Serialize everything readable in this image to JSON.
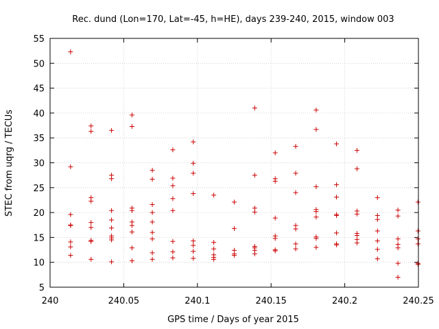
{
  "chart_data": {
    "type": "scatter",
    "title": "Rec. dund (Lon=170, Lat=-45, h=HE), days 239-240, 2015, window 003",
    "xlabel": "GPS time / Days of year 2015",
    "ylabel": "STEC from uqrg / TECUs",
    "xlim": [
      240,
      240.25
    ],
    "ylim": [
      5,
      55
    ],
    "xticks": [
      240,
      240.05,
      240.1,
      240.15,
      240.2,
      240.25
    ],
    "xtick_labels": [
      "240",
      "240.05",
      "240.1",
      "240.15",
      "240.2",
      "240.25"
    ],
    "yticks": [
      5,
      10,
      15,
      20,
      25,
      30,
      35,
      40,
      45,
      50,
      55
    ],
    "ytick_labels": [
      "5",
      "10",
      "15",
      "20",
      "25",
      "30",
      "35",
      "40",
      "45",
      "50",
      "55"
    ],
    "grid": true,
    "marker": "+",
    "color": "#cc0000",
    "series": [
      {
        "name": "STEC",
        "points": [
          [
            240.0139,
            52.3
          ],
          [
            240.0139,
            29.2
          ],
          [
            240.0139,
            19.6
          ],
          [
            240.0139,
            17.5
          ],
          [
            240.0139,
            17.4
          ],
          [
            240.0139,
            14.1
          ],
          [
            240.0139,
            13.1
          ],
          [
            240.0139,
            11.4
          ],
          [
            240.0278,
            37.4
          ],
          [
            240.0278,
            36.3
          ],
          [
            240.0278,
            23.0
          ],
          [
            240.0278,
            22.3
          ],
          [
            240.0278,
            18.0
          ],
          [
            240.0278,
            17.0
          ],
          [
            240.0278,
            14.4
          ],
          [
            240.0278,
            14.2
          ],
          [
            240.0278,
            10.6
          ],
          [
            240.0417,
            36.5
          ],
          [
            240.0417,
            27.5
          ],
          [
            240.0417,
            26.8
          ],
          [
            240.0417,
            20.4
          ],
          [
            240.0417,
            18.5
          ],
          [
            240.0417,
            16.9
          ],
          [
            240.0417,
            15.3
          ],
          [
            240.0417,
            14.9
          ],
          [
            240.0417,
            14.5
          ],
          [
            240.0417,
            10.1
          ],
          [
            240.0556,
            39.6
          ],
          [
            240.0556,
            37.3
          ],
          [
            240.0556,
            20.9
          ],
          [
            240.0556,
            20.4
          ],
          [
            240.0556,
            18.1
          ],
          [
            240.0556,
            17.4
          ],
          [
            240.0556,
            16.1
          ],
          [
            240.0556,
            12.9
          ],
          [
            240.0556,
            10.3
          ],
          [
            240.0694,
            28.5
          ],
          [
            240.0694,
            26.7
          ],
          [
            240.0694,
            21.6
          ],
          [
            240.0694,
            20.0
          ],
          [
            240.0694,
            18.1
          ],
          [
            240.0694,
            16.0
          ],
          [
            240.0694,
            14.7
          ],
          [
            240.0694,
            11.9
          ],
          [
            240.0694,
            10.6
          ],
          [
            240.0833,
            32.6
          ],
          [
            240.0833,
            26.9
          ],
          [
            240.0833,
            25.4
          ],
          [
            240.0833,
            22.8
          ],
          [
            240.0833,
            20.4
          ],
          [
            240.0833,
            14.2
          ],
          [
            240.0833,
            12.1
          ],
          [
            240.0833,
            10.9
          ],
          [
            240.0972,
            34.2
          ],
          [
            240.0972,
            29.9
          ],
          [
            240.0972,
            27.9
          ],
          [
            240.0972,
            23.8
          ],
          [
            240.0972,
            14.3
          ],
          [
            240.0972,
            13.4
          ],
          [
            240.0972,
            12.2
          ],
          [
            240.0972,
            10.8
          ],
          [
            240.1111,
            23.5
          ],
          [
            240.1111,
            14.0
          ],
          [
            240.1111,
            12.7
          ],
          [
            240.1111,
            11.5
          ],
          [
            240.1111,
            11.0
          ],
          [
            240.1111,
            10.6
          ],
          [
            240.125,
            22.1
          ],
          [
            240.125,
            16.8
          ],
          [
            240.125,
            12.4
          ],
          [
            240.125,
            11.7
          ],
          [
            240.125,
            11.4
          ],
          [
            240.1389,
            41.0
          ],
          [
            240.1389,
            27.5
          ],
          [
            240.1389,
            20.9
          ],
          [
            240.1389,
            20.1
          ],
          [
            240.1389,
            13.2
          ],
          [
            240.1389,
            12.9
          ],
          [
            240.1389,
            12.4
          ],
          [
            240.1389,
            11.7
          ],
          [
            240.1528,
            32.0
          ],
          [
            240.1528,
            26.8
          ],
          [
            240.1528,
            26.3
          ],
          [
            240.1528,
            18.9
          ],
          [
            240.1528,
            15.3
          ],
          [
            240.1528,
            14.8
          ],
          [
            240.1528,
            12.5
          ],
          [
            240.1528,
            12.3
          ],
          [
            240.1667,
            33.3
          ],
          [
            240.1667,
            27.9
          ],
          [
            240.1667,
            24.0
          ],
          [
            240.1667,
            17.4
          ],
          [
            240.1667,
            16.7
          ],
          [
            240.1667,
            13.7
          ],
          [
            240.1667,
            12.7
          ],
          [
            240.1806,
            40.6
          ],
          [
            240.1806,
            36.7
          ],
          [
            240.1806,
            25.2
          ],
          [
            240.1806,
            20.6
          ],
          [
            240.1806,
            20.2
          ],
          [
            240.1806,
            19.1
          ],
          [
            240.1806,
            15.1
          ],
          [
            240.1806,
            14.8
          ],
          [
            240.1806,
            13.0
          ],
          [
            240.1944,
            33.8
          ],
          [
            240.1944,
            25.6
          ],
          [
            240.1944,
            23.1
          ],
          [
            240.1944,
            19.6
          ],
          [
            240.1944,
            19.4
          ],
          [
            240.1944,
            15.9
          ],
          [
            240.1944,
            13.7
          ],
          [
            240.1944,
            13.5
          ],
          [
            240.2083,
            32.5
          ],
          [
            240.2083,
            28.8
          ],
          [
            240.2083,
            20.3
          ],
          [
            240.2083,
            19.7
          ],
          [
            240.2083,
            15.8
          ],
          [
            240.2083,
            15.4
          ],
          [
            240.2083,
            14.6
          ],
          [
            240.2083,
            13.9
          ],
          [
            240.2222,
            23.0
          ],
          [
            240.2222,
            19.4
          ],
          [
            240.2222,
            18.6
          ],
          [
            240.2222,
            16.3
          ],
          [
            240.2222,
            14.3
          ],
          [
            240.2222,
            12.6
          ],
          [
            240.2222,
            10.7
          ],
          [
            240.2361,
            20.5
          ],
          [
            240.2361,
            19.3
          ],
          [
            240.2361,
            14.7
          ],
          [
            240.2361,
            13.6
          ],
          [
            240.2361,
            12.9
          ],
          [
            240.2361,
            9.8
          ],
          [
            240.2361,
            7.0
          ],
          [
            240.2497,
            22.1
          ],
          [
            240.2497,
            16.3
          ],
          [
            240.2497,
            14.7
          ],
          [
            240.2497,
            13.7
          ],
          [
            240.2497,
            9.8
          ],
          [
            240.2497,
            9.6
          ]
        ]
      }
    ]
  }
}
